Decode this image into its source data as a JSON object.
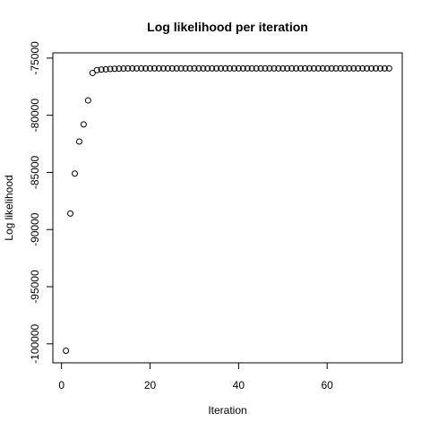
{
  "chart_data": {
    "type": "scatter",
    "title": "Log likelihood per iteration",
    "xlabel": "Iteration",
    "ylabel": "Log likelihood",
    "xlim": [
      -1.96,
      76.96
    ],
    "ylim": [
      -101660,
      -74540
    ],
    "x_ticks": [
      0,
      20,
      40,
      60
    ],
    "y_ticks": [
      -100000,
      -95000,
      -90000,
      -85000,
      -80000,
      -75000
    ],
    "x_tick_labels": [
      "0",
      "20",
      "40",
      "60"
    ],
    "y_tick_labels": [
      "-100000",
      "-95000",
      "-90000",
      "-85000",
      "-80000",
      "-75000"
    ],
    "grid": false,
    "series": [
      {
        "x": [
          1,
          2,
          3,
          4,
          5,
          6,
          7,
          8,
          9,
          10,
          11,
          12,
          13,
          14,
          15,
          16,
          17,
          18,
          19,
          20,
          21,
          22,
          23,
          24,
          25,
          26,
          27,
          28,
          29,
          30,
          31,
          32,
          33,
          34,
          35,
          36,
          37,
          38,
          39,
          40,
          41,
          42,
          43,
          44,
          45,
          46,
          47,
          48,
          49,
          50,
          51,
          52,
          53,
          54,
          55,
          56,
          57,
          58,
          59,
          60,
          61,
          62,
          63,
          64,
          65,
          66,
          67,
          68,
          69,
          70,
          71,
          72,
          73,
          74
        ],
        "y": [
          -100600,
          -88600,
          -85100,
          -82300,
          -80800,
          -78700,
          -76300,
          -76050,
          -76000,
          -75980,
          -75950,
          -75930,
          -75920,
          -75910,
          -75900,
          -75900,
          -75900,
          -75900,
          -75900,
          -75900,
          -75900,
          -75900,
          -75900,
          -75900,
          -75900,
          -75900,
          -75900,
          -75900,
          -75900,
          -75900,
          -75900,
          -75900,
          -75900,
          -75900,
          -75900,
          -75900,
          -75900,
          -75900,
          -75900,
          -75900,
          -75900,
          -75900,
          -75900,
          -75900,
          -75900,
          -75900,
          -75900,
          -75900,
          -75900,
          -75900,
          -75900,
          -75900,
          -75900,
          -75900,
          -75900,
          -75900,
          -75900,
          -75900,
          -75900,
          -75900,
          -75900,
          -75900,
          -75900,
          -75900,
          -75900,
          -75900,
          -75900,
          -75900,
          -75900,
          -75900,
          -75900,
          -75900,
          -75900,
          -75900
        ]
      }
    ]
  }
}
